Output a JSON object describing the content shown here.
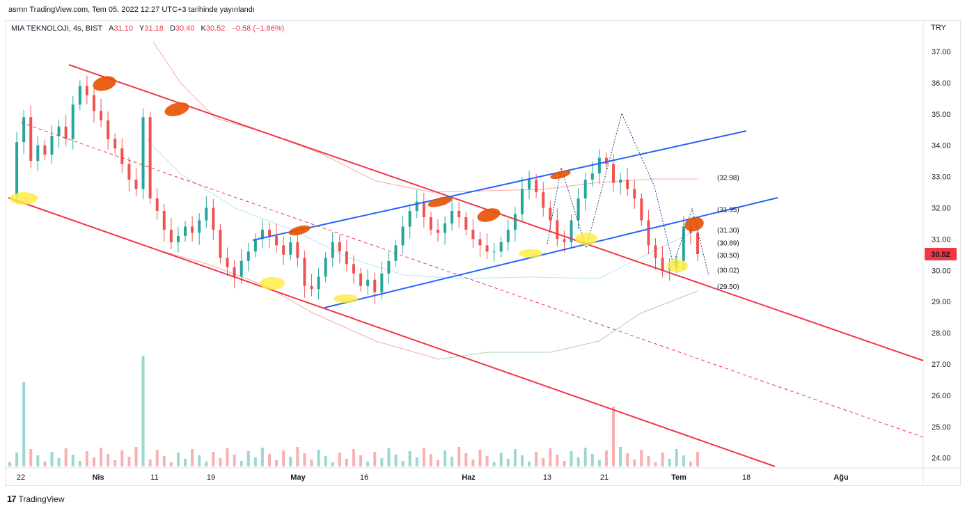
{
  "header": {
    "published": "asrnn TradingView.com, Tem 05, 2022 12:27 UTC+3 tarihinde yayınlandı",
    "symbol": "MIA TEKNOLOJI, 4s, BIST",
    "open_label": "A",
    "open": "31.10",
    "high_label": "Y",
    "high": "31.18",
    "low_label": "D",
    "low": "30.40",
    "close_label": "K",
    "close": "30.52",
    "change": "−0.58 (−1.86%)",
    "currency": "TRY"
  },
  "footer": {
    "brand": "TradingView"
  },
  "colors": {
    "up": "#26a69a",
    "down": "#ef5350",
    "channel_red": "#f23645",
    "channel_blue": "#2962ff",
    "highlight_orange": "#e65100",
    "highlight_yellow": "#ffeb3b",
    "last_price_bg": "#f23645"
  },
  "chart_data": {
    "type": "candlestick",
    "ylim": [
      23.6,
      37.6
    ],
    "y_ticks": [
      "37.00",
      "36.00",
      "35.00",
      "34.00",
      "33.00",
      "32.00",
      "31.00",
      "30.00",
      "29.00",
      "28.00",
      "27.00",
      "26.00",
      "25.00",
      "24.00"
    ],
    "x_ticks": [
      "22",
      "Nis",
      "11",
      "19",
      "May",
      "16",
      "Haz",
      "13",
      "21",
      "Tem",
      "18",
      "Ağu"
    ],
    "last_price": "30.52",
    "levels": [
      {
        "label": "(32.98)",
        "value": 32.98,
        "color": "#131722"
      },
      {
        "label": "(31.95)",
        "value": 31.95,
        "color": "#131722"
      },
      {
        "label": "(31.30)",
        "value": 31.3,
        "color": "#131722"
      },
      {
        "label": "(30.89)",
        "value": 30.89,
        "color": "#131722"
      },
      {
        "label": "(30.50)",
        "value": 30.5,
        "color": "#ff9800"
      },
      {
        "label": "(30.02)",
        "value": 30.02,
        "color": "#131722"
      },
      {
        "label": "(29.50)",
        "value": 29.5,
        "color": "#131722"
      }
    ],
    "price_path": [
      32.4,
      34.1,
      34.9,
      33.5,
      34.0,
      33.7,
      34.3,
      34.6,
      34.2,
      35.3,
      35.9,
      35.6,
      35.1,
      34.8,
      34.2,
      33.9,
      33.4,
      32.9,
      32.6,
      34.9,
      32.3,
      31.9,
      31.3,
      30.9,
      31.1,
      31.4,
      31.2,
      31.6,
      32.0,
      31.3,
      30.4,
      30.1,
      29.8,
      30.3,
      30.6,
      31.0,
      31.3,
      31.1,
      30.8,
      30.5,
      30.9,
      30.4,
      29.5,
      29.4,
      29.8,
      30.4,
      30.9,
      30.6,
      30.2,
      29.9,
      29.5,
      29.7,
      29.3,
      29.9,
      30.3,
      30.8,
      31.4,
      31.9,
      32.2,
      31.7,
      31.3,
      31.2,
      31.5,
      31.9,
      31.7,
      31.3,
      31.0,
      30.8,
      30.6,
      30.6,
      30.9,
      31.3,
      31.8,
      32.6,
      32.9,
      32.5,
      32.0,
      31.6,
      31.0,
      30.9,
      31.6,
      32.3,
      32.9,
      33.1,
      33.6,
      33.4,
      32.8,
      32.9,
      32.6,
      32.3,
      31.6,
      30.8,
      30.4,
      30.0,
      30.1,
      30.3,
      31.4,
      31.2,
      30.52
    ]
  }
}
